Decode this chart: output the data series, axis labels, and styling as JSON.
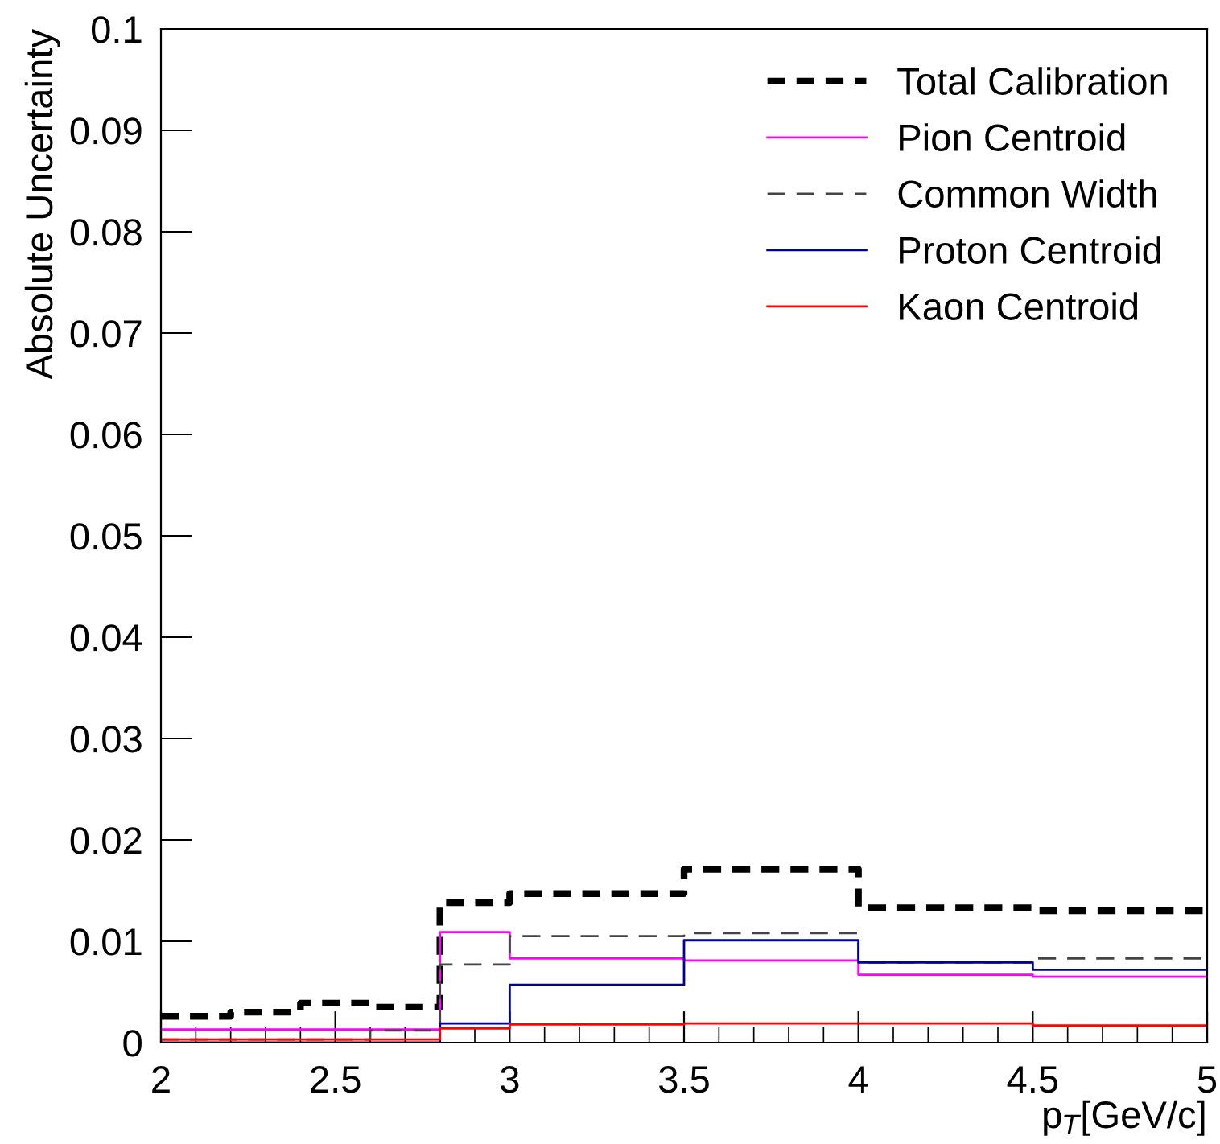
{
  "chart_data": {
    "type": "step",
    "xlabel": "p$_{T}$[GeV/c]",
    "ylabel": "Absolute Uncertainty",
    "x": [
      2,
      2.2,
      2.4,
      2.6,
      2.8,
      3,
      3.5,
      4,
      4.5,
      5
    ],
    "series": [
      {
        "name": "Total Calibration",
        "color": "#000000",
        "line_style": "dashed",
        "values": [
          0.0026,
          0.003,
          0.0039,
          0.0035,
          0.0138,
          0.0147,
          0.0171,
          0.0133,
          0.013,
          0.013
        ]
      },
      {
        "name": "Pion Centroid",
        "color": "#ff00ff",
        "line_style": "solid",
        "values": [
          0.0013,
          0.0013,
          0.0013,
          0.0013,
          0.0109,
          0.0083,
          0.0081,
          0.0067,
          0.0065,
          0.0065
        ]
      },
      {
        "name": "Common Width",
        "color": "#444444",
        "line_style": "dashed",
        "values": [
          0.0003,
          0.0003,
          0.0003,
          0.0012,
          0.0077,
          0.0105,
          0.0108,
          0.0079,
          0.0083,
          0.0083
        ]
      },
      {
        "name": "Proton Centroid",
        "color": "#000099",
        "line_style": "solid",
        "values": [
          0,
          0,
          0,
          0,
          0.0019,
          0.0057,
          0.0101,
          0.0079,
          0.0072,
          0.0072
        ]
      },
      {
        "name": "Kaon Centroid",
        "color": "#ff0000",
        "line_style": "solid",
        "values": [
          0.0003,
          0.0003,
          0.0003,
          0.0003,
          0.0014,
          0.0018,
          0.0019,
          0.0019,
          0.0017,
          0.0017
        ]
      }
    ],
    "xlim": [
      2,
      5
    ],
    "ylim": [
      0,
      0.1
    ],
    "xticks": [
      2,
      2.5,
      3,
      3.5,
      4,
      4.5,
      5
    ],
    "yticks": [
      0,
      0.01,
      0.02,
      0.03,
      0.04,
      0.05,
      0.06,
      0.07,
      0.08,
      0.09,
      0.1
    ],
    "legend": "top right",
    "grid": false
  }
}
